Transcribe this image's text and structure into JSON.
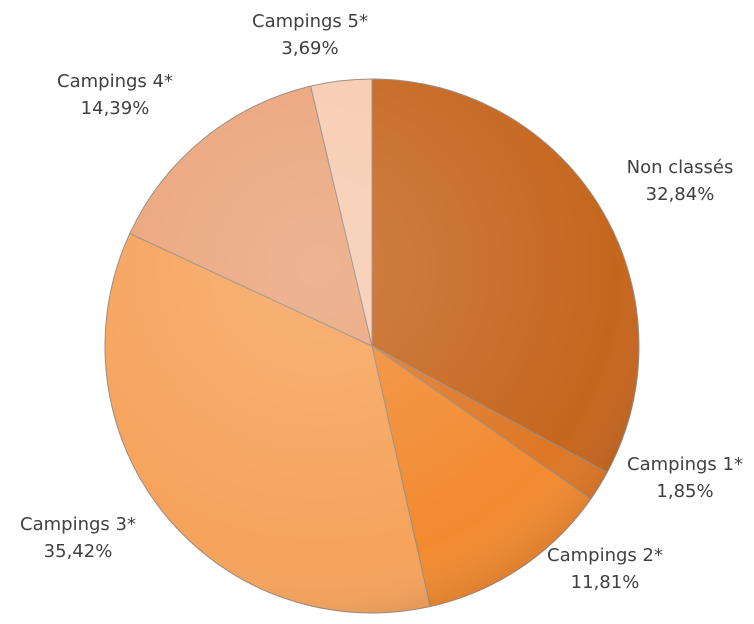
{
  "chart_data": {
    "type": "pie",
    "categories": [
      "Non classés",
      "Campings 1*",
      "Campings 2*",
      "Campings 3*",
      "Campings 4*",
      "Campings 5*"
    ],
    "values": [
      32.84,
      1.85,
      11.81,
      35.42,
      14.39,
      3.69
    ],
    "value_labels": [
      "32,84%",
      "1,85%",
      "11,81%",
      "35,42%",
      "14,39%",
      "3,69%"
    ],
    "colors": [
      "#c5661e",
      "#de7726",
      "#f28a30",
      "#f6a35b",
      "#eaa47b",
      "#f7cbb0"
    ]
  }
}
